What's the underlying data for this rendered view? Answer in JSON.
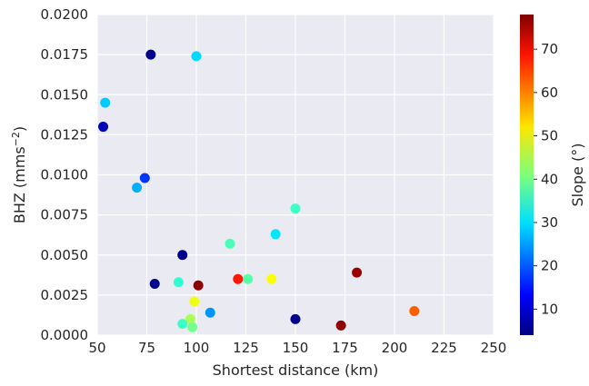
{
  "chart_data": {
    "type": "scatter",
    "title": "",
    "xlabel": "Shortest distance (km)",
    "ylabel": "BHZ (mms",
    "ylabel_sup": "−2",
    "ylabel_close": ")",
    "xlim": [
      50,
      250
    ],
    "ylim": [
      0,
      0.02
    ],
    "x_ticks": [
      "50",
      "75",
      "100",
      "125",
      "150",
      "175",
      "200",
      "225",
      "250"
    ],
    "x_tick_values": [
      50,
      75,
      100,
      125,
      150,
      175,
      200,
      225,
      250
    ],
    "y_ticks": [
      "0.0000",
      "0.0025",
      "0.0050",
      "0.0075",
      "0.0100",
      "0.0125",
      "0.0150",
      "0.0175",
      "0.0200"
    ],
    "y_tick_values": [
      0,
      0.0025,
      0.005,
      0.0075,
      0.01,
      0.0125,
      0.015,
      0.0175,
      0.02
    ],
    "grid": true,
    "plot_background": "#eaeaf2",
    "grid_color": "#ffffff",
    "colormap": "jet",
    "colorbar": {
      "label": "Slope (°)",
      "range": [
        4,
        78
      ],
      "ticks": [
        "10",
        "20",
        "30",
        "40",
        "50",
        "60",
        "70"
      ],
      "tick_values": [
        10,
        20,
        30,
        40,
        50,
        60,
        70
      ]
    },
    "points": [
      {
        "x": 77,
        "y": 0.0175,
        "slope": 5
      },
      {
        "x": 100,
        "y": 0.0174,
        "slope": 29
      },
      {
        "x": 54,
        "y": 0.0145,
        "slope": 28
      },
      {
        "x": 53,
        "y": 0.013,
        "slope": 8
      },
      {
        "x": 74,
        "y": 0.0098,
        "slope": 17
      },
      {
        "x": 70,
        "y": 0.0092,
        "slope": 26
      },
      {
        "x": 150,
        "y": 0.0079,
        "slope": 36
      },
      {
        "x": 140,
        "y": 0.0063,
        "slope": 30
      },
      {
        "x": 117,
        "y": 0.0057,
        "slope": 37
      },
      {
        "x": 93,
        "y": 0.005,
        "slope": 5
      },
      {
        "x": 181,
        "y": 0.0039,
        "slope": 76
      },
      {
        "x": 121,
        "y": 0.0035,
        "slope": 67
      },
      {
        "x": 126,
        "y": 0.0035,
        "slope": 38
      },
      {
        "x": 138,
        "y": 0.0035,
        "slope": 50
      },
      {
        "x": 91,
        "y": 0.0033,
        "slope": 35
      },
      {
        "x": 79,
        "y": 0.0032,
        "slope": 5
      },
      {
        "x": 101,
        "y": 0.0031,
        "slope": 77
      },
      {
        "x": 99,
        "y": 0.0021,
        "slope": 49
      },
      {
        "x": 107,
        "y": 0.0014,
        "slope": 24
      },
      {
        "x": 210,
        "y": 0.0015,
        "slope": 62
      },
      {
        "x": 150,
        "y": 0.001,
        "slope": 5
      },
      {
        "x": 97,
        "y": 0.001,
        "slope": 44
      },
      {
        "x": 93,
        "y": 0.0007,
        "slope": 36
      },
      {
        "x": 98,
        "y": 0.0005,
        "slope": 40
      },
      {
        "x": 173,
        "y": 0.0006,
        "slope": 77
      }
    ]
  }
}
